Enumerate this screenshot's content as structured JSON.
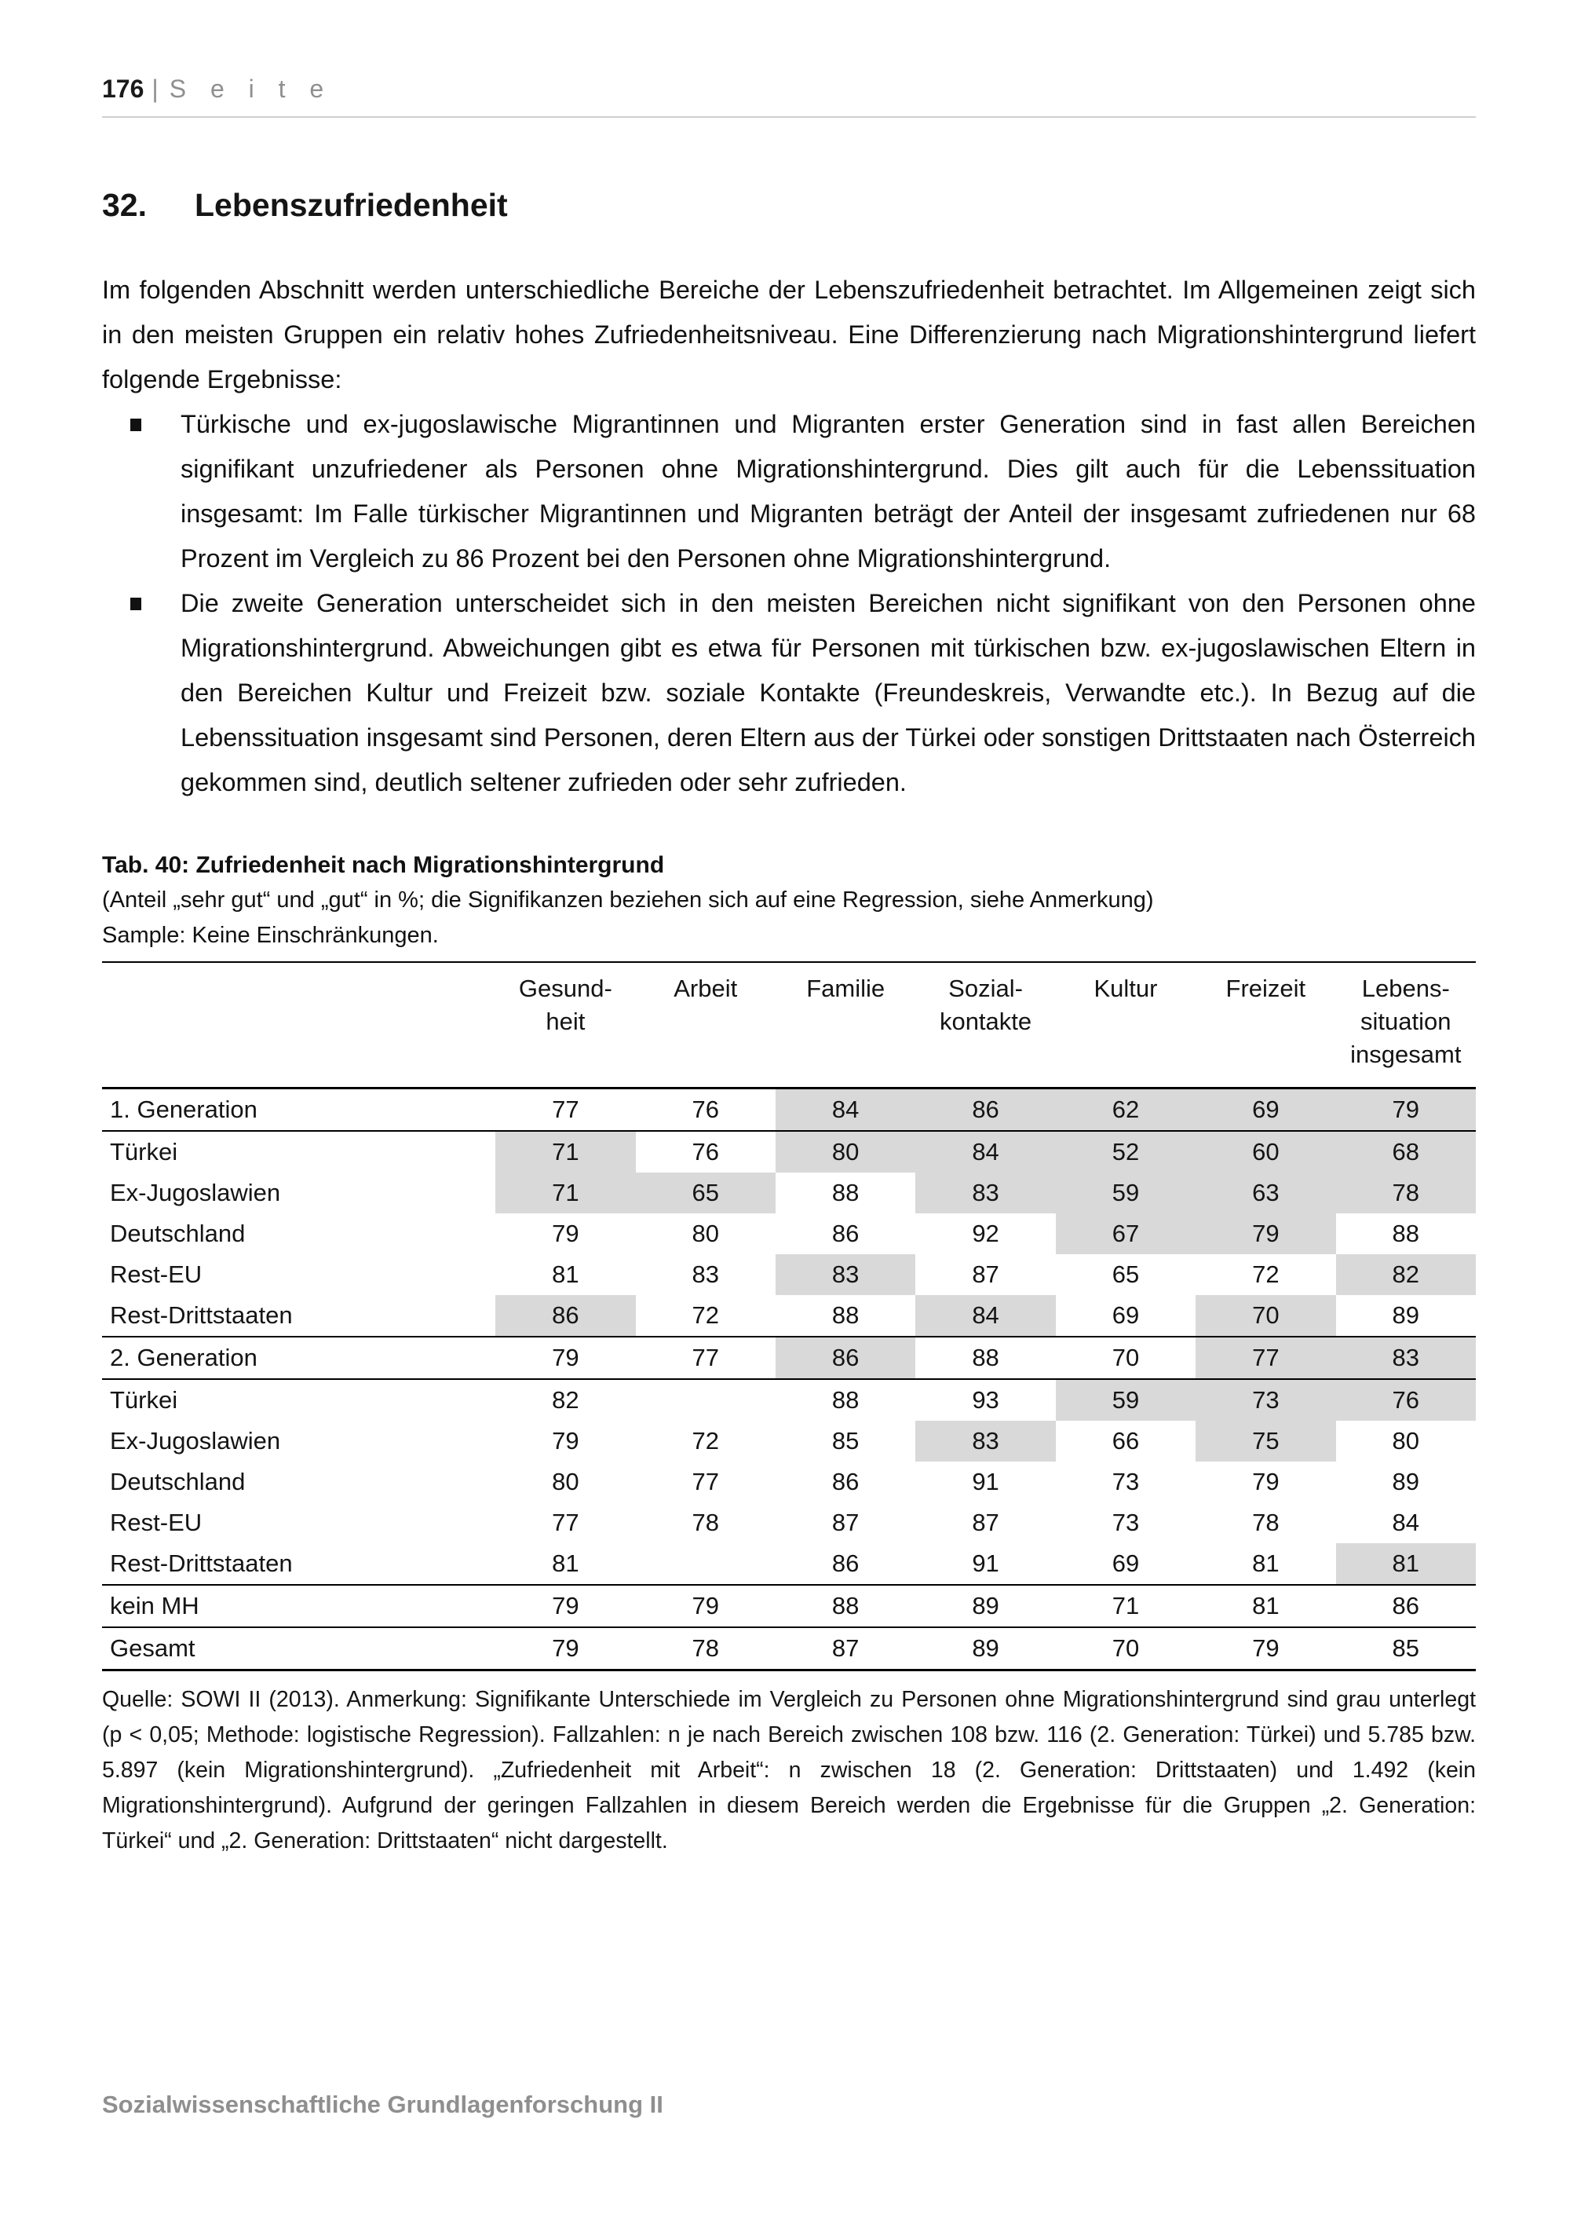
{
  "page": {
    "page_number": "176",
    "page_separator": "|",
    "page_label": "S e i t e",
    "footer": "Sozialwissenschaftliche Grundlagenforschung II"
  },
  "section": {
    "number": "32.",
    "title": "Lebenszufriedenheit"
  },
  "intro": "Im folgenden Abschnitt werden unterschiedliche Bereiche der Lebenszufriedenheit betrach­tet. Im Allgemeinen zeigt sich in den meisten Gruppen ein relativ hohes Zufriedenheitsni­veau. Eine Differenzierung nach Migrationshintergrund liefert folgende Ergebnisse:",
  "bullets": [
    "Türkische und ex-jugoslawische Migrantinnen und Migranten erster Generation sind in fast allen Bereichen signifikant unzufriedener als Personen ohne Migrationshintergrund. Dies gilt auch für die Lebenssituation insgesamt: Im Falle türkischer Migrantinnen und Migranten beträgt der Anteil der insgesamt zufriedenen nur 68 Prozent im Vergleich zu 86 Prozent bei den Personen ohne Migrationshintergrund.",
    "Die zweite Generation unterscheidet sich in den meisten Bereichen nicht signifikant von den Personen ohne Migrationshintergrund. Abweichungen gibt es etwa für Personen mit türkischen bzw. ex-jugoslawischen Eltern in den Bereichen Kultur und Freizeit bzw. so­ziale Kontakte (Freundeskreis, Verwandte etc.). In Bezug auf die Lebenssituation insge­samt sind Personen, deren Eltern aus der Türkei oder sonstigen Drittstaaten nach Öster­reich gekommen sind, deutlich seltener zufrieden oder sehr zufrieden."
  ],
  "table": {
    "caption_title": "Tab. 40: Zufriedenheit nach Migrationshintergrund",
    "caption_sub": "(Anteil „sehr gut“ und „gut“ in %; die Signifikanzen beziehen sich auf eine Regression, siehe Anmerkung)",
    "caption_sample": "Sample: Keine Einschränkungen.",
    "columns": [
      "Gesund-\nheit",
      "Arbeit",
      "Familie",
      "Sozial-\nkontakte",
      "Kultur",
      "Freizeit",
      "Lebens-\nsituation\ninsgesamt"
    ],
    "rows": [
      {
        "label": "1. Generation",
        "values": [
          "77",
          "76",
          "84",
          "86",
          "62",
          "69",
          "79"
        ],
        "gray": [
          0,
          0,
          1,
          1,
          1,
          1,
          1
        ],
        "rule_top": false
      },
      {
        "label": "Türkei",
        "values": [
          "71",
          "76",
          "80",
          "84",
          "52",
          "60",
          "68"
        ],
        "gray": [
          1,
          0,
          1,
          1,
          1,
          1,
          1
        ],
        "rule_top": true
      },
      {
        "label": "Ex-Jugoslawien",
        "values": [
          "71",
          "65",
          "88",
          "83",
          "59",
          "63",
          "78"
        ],
        "gray": [
          1,
          1,
          0,
          1,
          1,
          1,
          1
        ],
        "rule_top": false
      },
      {
        "label": "Deutschland",
        "values": [
          "79",
          "80",
          "86",
          "92",
          "67",
          "79",
          "88"
        ],
        "gray": [
          0,
          0,
          0,
          0,
          1,
          1,
          0
        ],
        "rule_top": false
      },
      {
        "label": "Rest-EU",
        "values": [
          "81",
          "83",
          "83",
          "87",
          "65",
          "72",
          "82"
        ],
        "gray": [
          0,
          0,
          1,
          0,
          0,
          0,
          1
        ],
        "rule_top": false
      },
      {
        "label": "Rest-Drittstaaten",
        "values": [
          "86",
          "72",
          "88",
          "84",
          "69",
          "70",
          "89"
        ],
        "gray": [
          1,
          0,
          0,
          1,
          0,
          1,
          0
        ],
        "rule_top": false
      },
      {
        "label": "2. Generation",
        "values": [
          "79",
          "77",
          "86",
          "88",
          "70",
          "77",
          "83"
        ],
        "gray": [
          0,
          0,
          1,
          0,
          0,
          1,
          1
        ],
        "rule_top": true
      },
      {
        "label": "Türkei",
        "values": [
          "82",
          "",
          "88",
          "93",
          "59",
          "73",
          "76"
        ],
        "gray": [
          0,
          0,
          0,
          0,
          1,
          1,
          1
        ],
        "rule_top": true
      },
      {
        "label": "Ex-Jugoslawien",
        "values": [
          "79",
          "72",
          "85",
          "83",
          "66",
          "75",
          "80"
        ],
        "gray": [
          0,
          0,
          0,
          1,
          0,
          1,
          0
        ],
        "rule_top": false
      },
      {
        "label": "Deutschland",
        "values": [
          "80",
          "77",
          "86",
          "91",
          "73",
          "79",
          "89"
        ],
        "gray": [
          0,
          0,
          0,
          0,
          0,
          0,
          0
        ],
        "rule_top": false
      },
      {
        "label": "Rest-EU",
        "values": [
          "77",
          "78",
          "87",
          "87",
          "73",
          "78",
          "84"
        ],
        "gray": [
          0,
          0,
          0,
          0,
          0,
          0,
          0
        ],
        "rule_top": false
      },
      {
        "label": "Rest-Drittstaaten",
        "values": [
          "81",
          "",
          "86",
          "91",
          "69",
          "81",
          "81"
        ],
        "gray": [
          0,
          0,
          0,
          0,
          0,
          0,
          1
        ],
        "rule_top": false
      },
      {
        "label": "kein MH",
        "values": [
          "79",
          "79",
          "88",
          "89",
          "71",
          "81",
          "86"
        ],
        "gray": [
          0,
          0,
          0,
          0,
          0,
          0,
          0
        ],
        "rule_top": true
      },
      {
        "label": "Gesamt",
        "values": [
          "79",
          "78",
          "87",
          "89",
          "70",
          "79",
          "85"
        ],
        "gray": [
          0,
          0,
          0,
          0,
          0,
          0,
          0
        ],
        "rule_top": true
      }
    ],
    "note": "Quelle: SOWI II (2013). Anmerkung: Signifikante Unterschiede im Vergleich zu Personen ohne Migrationshinter­grund sind grau unterlegt (p < 0,05; Methode: logistische Regression).  Fallzahlen: n je nach Bereich zwischen 108 bzw. 116 (2. Generation: Türkei) und 5.785 bzw. 5.897 (kein Migrationshintergrund). „Zufriedenheit mit Ar­beit“: n zwischen 18 (2. Generation: Drittstaaten) und 1.492 (kein Migrationshintergrund). Aufgrund der geringen Fallzahlen in diesem Bereich werden die Ergebnisse für die Gruppen „2. Generation: Türkei“ und „2. Generation: Drittstaaten“ nicht dargestellt."
  },
  "colors": {
    "cell_highlight_gray": "#d9d9d9",
    "footer_gray": "#8f8f8f",
    "rule_black": "#000000"
  }
}
